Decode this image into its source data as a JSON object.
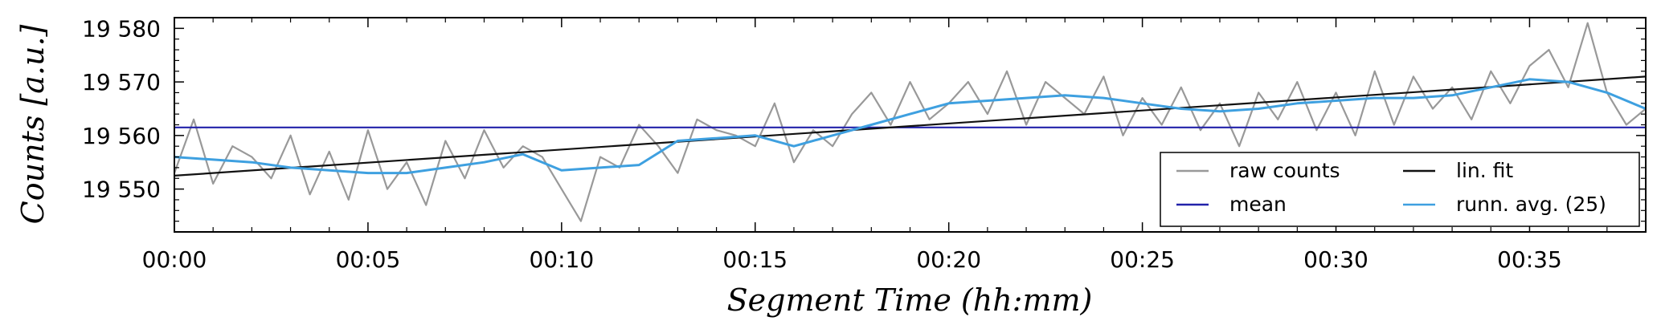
{
  "chart_data": {
    "type": "line",
    "xlabel": "Segment Time (hh:mm)",
    "ylabel": "Counts [a.u.]",
    "xlim": [
      0,
      38
    ],
    "ylim": [
      19542,
      19582
    ],
    "x_ticks": [
      {
        "value": 0,
        "label": "00:00"
      },
      {
        "value": 5,
        "label": "00:05"
      },
      {
        "value": 10,
        "label": "00:10"
      },
      {
        "value": 15,
        "label": "00:15"
      },
      {
        "value": 20,
        "label": "00:20"
      },
      {
        "value": 25,
        "label": "00:25"
      },
      {
        "value": 30,
        "label": "00:30"
      },
      {
        "value": 35,
        "label": "00:35"
      }
    ],
    "y_ticks": [
      {
        "value": 19550,
        "label": "19 550"
      },
      {
        "value": 19560,
        "label": "19 560"
      },
      {
        "value": 19570,
        "label": "19 570"
      },
      {
        "value": 19580,
        "label": "19 580"
      }
    ],
    "grid": false,
    "legend_position": "bottom-right",
    "series": [
      {
        "name": "raw counts",
        "color": "#999999",
        "x": [
          0.0,
          0.5,
          1.0,
          1.5,
          2.0,
          2.5,
          3.0,
          3.5,
          4.0,
          4.5,
          5.0,
          5.5,
          6.0,
          6.5,
          7.0,
          7.5,
          8.0,
          8.5,
          9.0,
          9.5,
          10.0,
          10.5,
          11.0,
          11.5,
          12.0,
          12.5,
          13.0,
          13.5,
          14.0,
          14.5,
          15.0,
          15.5,
          16.0,
          16.5,
          17.0,
          17.5,
          18.0,
          18.5,
          19.0,
          19.5,
          20.0,
          20.5,
          21.0,
          21.5,
          22.0,
          22.5,
          23.0,
          23.5,
          24.0,
          24.5,
          25.0,
          25.5,
          26.0,
          26.5,
          27.0,
          27.5,
          28.0,
          28.5,
          29.0,
          29.5,
          30.0,
          30.5,
          31.0,
          31.5,
          32.0,
          32.5,
          33.0,
          33.5,
          34.0,
          34.5,
          35.0,
          35.5,
          36.0,
          36.5,
          37.0,
          37.5,
          38.0
        ],
        "y": [
          19553,
          19563,
          19551,
          19558,
          19556,
          19552,
          19560,
          19549,
          19557,
          19548,
          19561,
          19550,
          19555,
          19547,
          19559,
          19552,
          19561,
          19554,
          19558,
          19556,
          19550,
          19544,
          19556,
          19554,
          19562,
          19558,
          19553,
          19563,
          19561,
          19560,
          19558,
          19566,
          19555,
          19561,
          19558,
          19564,
          19568,
          19562,
          19570,
          19563,
          19566,
          19570,
          19564,
          19572,
          19562,
          19570,
          19567,
          19564,
          19571,
          19560,
          19567,
          19562,
          19569,
          19561,
          19566,
          19558,
          19568,
          19563,
          19570,
          19561,
          19568,
          19560,
          19572,
          19562,
          19571,
          19565,
          19569,
          19563,
          19572,
          19566,
          19573,
          19576,
          19569,
          19581,
          19568,
          19562,
          19565
        ],
        "values": [
          19553,
          19563,
          19551,
          19558,
          19556,
          19552,
          19560,
          19549,
          19557,
          19548,
          19561,
          19550,
          19555,
          19547,
          19559,
          19552,
          19561,
          19554,
          19558,
          19556,
          19550,
          19544,
          19556,
          19554,
          19562,
          19558,
          19553,
          19563,
          19561,
          19560,
          19558,
          19566,
          19555,
          19561,
          19558,
          19564,
          19568,
          19562,
          19570,
          19563,
          19566,
          19570,
          19564,
          19572,
          19562,
          19570,
          19567,
          19564,
          19571,
          19560,
          19567,
          19562,
          19569,
          19561,
          19566,
          19558,
          19568,
          19563,
          19570,
          19561,
          19568,
          19560,
          19572,
          19562,
          19571,
          19565,
          19569,
          19563,
          19572,
          19566,
          19573,
          19576,
          19569,
          19581,
          19568,
          19562,
          19565
        ]
      },
      {
        "name": "mean",
        "color": "#2222aa",
        "x": [
          0,
          38
        ],
        "y": [
          19561.5,
          19561.5
        ]
      },
      {
        "name": "lin. fit",
        "color": "#111111",
        "x": [
          0,
          38
        ],
        "y": [
          19552.5,
          19571.0
        ]
      },
      {
        "name": "runn. avg. (25)",
        "color": "#3ea0e0",
        "x": [
          0,
          1,
          2,
          3,
          4,
          5,
          6,
          7,
          8,
          9,
          10,
          11,
          12,
          13,
          14,
          15,
          16,
          17,
          18,
          19,
          20,
          21,
          22,
          23,
          24,
          25,
          26,
          27,
          28,
          29,
          30,
          31,
          32,
          33,
          34,
          35,
          36,
          37,
          38
        ],
        "y": [
          19556,
          19555.5,
          19555,
          19554,
          19553.5,
          19553,
          19553,
          19554,
          19555,
          19556.5,
          19553.5,
          19554,
          19554.5,
          19559,
          19559.5,
          19560,
          19558,
          19560,
          19562,
          19564,
          19566,
          19566.5,
          19567,
          19567.5,
          19567,
          19566,
          19565,
          19564.5,
          19565,
          19566,
          19566.5,
          19567,
          19567,
          19567.5,
          19569,
          19570.5,
          19570,
          19568,
          19565
        ],
        "values": [
          19556,
          19555.5,
          19555,
          19554,
          19553.5,
          19553,
          19553,
          19554,
          19555,
          19556.5,
          19553.5,
          19554,
          19554.5,
          19559,
          19559.5,
          19560,
          19558,
          19560,
          19562,
          19564,
          19566,
          19566.5,
          19567,
          19567.5,
          19567,
          19566,
          19565,
          19564.5,
          19565,
          19566,
          19566.5,
          19567,
          19567,
          19567.5,
          19569,
          19570.5,
          19570,
          19568,
          19565
        ]
      }
    ],
    "legend": [
      {
        "label": "raw counts",
        "color": "#999999"
      },
      {
        "label": "lin. fit",
        "color": "#111111"
      },
      {
        "label": "mean",
        "color": "#2222aa"
      },
      {
        "label": "runn. avg. (25)",
        "color": "#3ea0e0"
      }
    ]
  }
}
